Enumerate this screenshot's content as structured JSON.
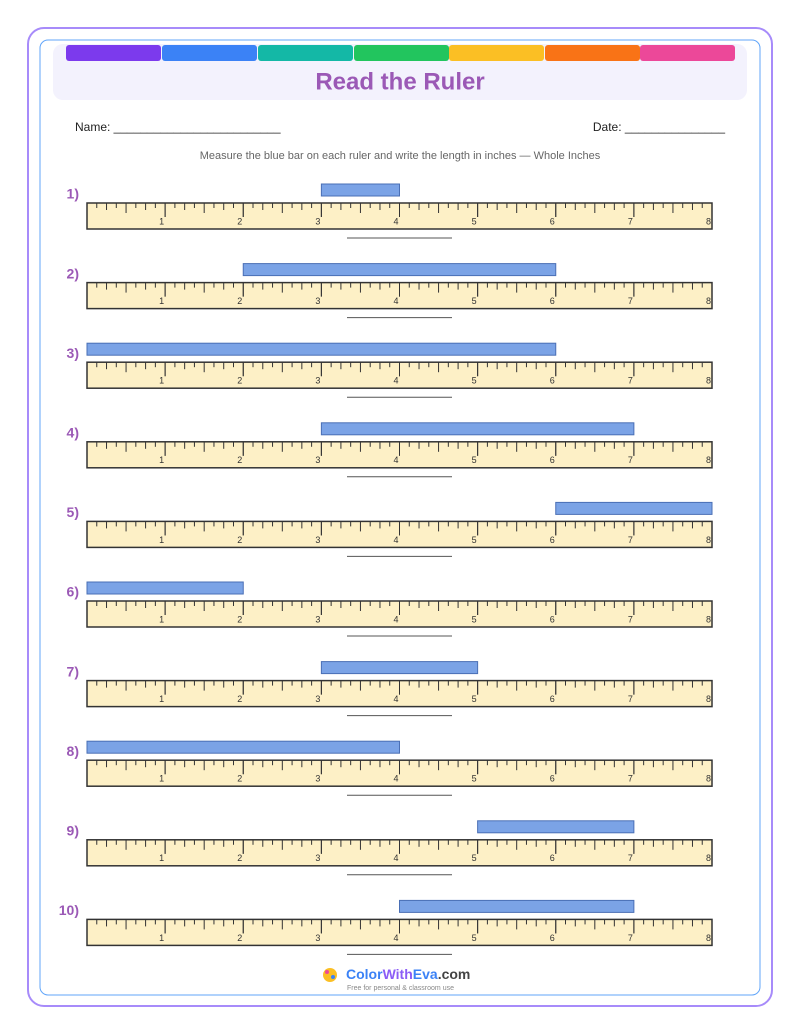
{
  "header": {
    "title": "Read the Ruler"
  },
  "name_label": "Name: _________________________",
  "date_label": "Date: _______________",
  "instructions": "Measure the blue bar on each ruler and write the length in inches — Whole Inches",
  "ruler_range": [
    0,
    8
  ],
  "ruler_labels": [
    1,
    2,
    3,
    4,
    5,
    6,
    7,
    8
  ],
  "problems": [
    {
      "label": "1)",
      "bar": [
        3,
        4
      ]
    },
    {
      "label": "2)",
      "bar": [
        2,
        6
      ]
    },
    {
      "label": "3)",
      "bar": [
        0,
        6
      ]
    },
    {
      "label": "4)",
      "bar": [
        3,
        7
      ]
    },
    {
      "label": "5)",
      "bar": [
        6,
        8
      ]
    },
    {
      "label": "6)",
      "bar": [
        0,
        2
      ]
    },
    {
      "label": "7)",
      "bar": [
        3,
        5
      ]
    },
    {
      "label": "8)",
      "bar": [
        0,
        4
      ]
    },
    {
      "label": "9)",
      "bar": [
        5,
        7
      ]
    },
    {
      "label": "10)",
      "bar": [
        4,
        7
      ]
    }
  ],
  "footer": {
    "brand": [
      "Color",
      "With",
      "Eva",
      ".com"
    ],
    "tagline": "Free for personal & classroom use"
  }
}
